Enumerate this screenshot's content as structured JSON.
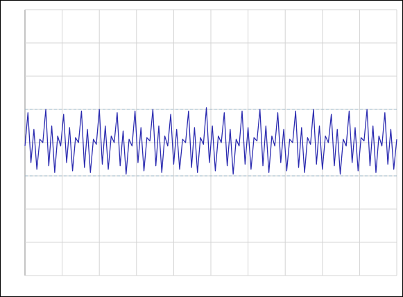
{
  "chart_data": {
    "type": "line",
    "xlim": [
      0,
      10
    ],
    "ylim": [
      -4,
      4
    ],
    "xticks": [
      0,
      1,
      2,
      3,
      4,
      5,
      6,
      7,
      8,
      9,
      10
    ],
    "yticks": [
      -4,
      -3,
      -2,
      -1,
      0,
      1,
      2,
      3,
      4
    ],
    "grid": true,
    "grid_color": "#d4d4d4",
    "cursor_levels": [
      -1,
      1
    ],
    "cursor_color": "#9ab4c4",
    "series": [
      {
        "color": "#2b2bb0",
        "x": [
          0,
          0.08,
          0.16,
          0.24,
          0.32,
          0.4,
          0.48,
          0.56,
          0.64,
          0.72,
          0.8,
          0.88,
          0.96,
          1.04,
          1.12,
          1.2,
          1.28,
          1.36,
          1.44,
          1.52,
          1.6,
          1.68,
          1.76,
          1.84,
          1.92,
          2,
          2.08,
          2.16,
          2.24,
          2.32,
          2.4,
          2.48,
          2.56,
          2.64,
          2.72,
          2.8,
          2.88,
          2.96,
          3.04,
          3.12,
          3.2,
          3.28,
          3.36,
          3.44,
          3.52,
          3.6,
          3.68,
          3.76,
          3.84,
          3.92,
          4,
          4.08,
          4.16,
          4.24,
          4.32,
          4.4,
          4.48,
          4.56,
          4.64,
          4.72,
          4.8,
          4.88,
          4.96,
          5.04,
          5.12,
          5.2,
          5.28,
          5.36,
          5.44,
          5.52,
          5.6,
          5.68,
          5.76,
          5.84,
          5.92,
          6,
          6.08,
          6.16,
          6.24,
          6.32,
          6.4,
          6.48,
          6.56,
          6.64,
          6.72,
          6.8,
          6.88,
          6.96,
          7.04,
          7.12,
          7.2,
          7.28,
          7.36,
          7.44,
          7.52,
          7.6,
          7.68,
          7.76,
          7.84,
          7.92,
          8,
          8.08,
          8.16,
          8.24,
          8.32,
          8.4,
          8.48,
          8.56,
          8.64,
          8.72,
          8.8,
          8.88,
          8.96,
          9.04,
          9.12,
          9.2,
          9.28,
          9.36,
          9.44,
          9.52,
          9.6,
          9.68,
          9.76,
          9.84,
          9.92,
          10
        ],
        "values": [
          -0.1,
          0.9,
          -0.6,
          0.4,
          -0.8,
          0.1,
          0.0,
          1.0,
          -0.7,
          0.5,
          -0.9,
          0.2,
          -0.1,
          0.85,
          -0.6,
          0.45,
          -0.85,
          0.15,
          0.0,
          0.95,
          -0.75,
          0.4,
          -0.9,
          0.1,
          -0.05,
          1.0,
          -0.65,
          0.5,
          -0.8,
          0.2,
          0.0,
          0.9,
          -0.7,
          0.35,
          -0.95,
          0.1,
          -0.1,
          0.95,
          -0.6,
          0.45,
          -0.85,
          0.15,
          0.05,
          1.0,
          -0.7,
          0.5,
          -0.9,
          0.2,
          -0.1,
          0.85,
          -0.65,
          0.4,
          -0.8,
          0.1,
          0.0,
          0.95,
          -0.75,
          0.45,
          -0.9,
          0.15,
          -0.05,
          1.05,
          -0.6,
          0.5,
          -0.85,
          0.2,
          0.0,
          0.9,
          -0.7,
          0.4,
          -0.95,
          0.1,
          -0.1,
          0.95,
          -0.65,
          0.45,
          -0.8,
          0.15,
          0.05,
          1.0,
          -0.7,
          0.5,
          -0.9,
          0.2,
          -0.1,
          0.9,
          -0.6,
          0.4,
          -0.85,
          0.1,
          0.0,
          0.95,
          -0.75,
          0.45,
          -0.9,
          0.15,
          -0.05,
          1.0,
          -0.65,
          0.5,
          -0.8,
          0.2,
          0.0,
          0.85,
          -0.7,
          0.4,
          -0.95,
          0.1,
          -0.1,
          0.95,
          -0.6,
          0.45,
          -0.85,
          0.15,
          0.05,
          1.0,
          -0.7,
          0.5,
          -0.9,
          0.2,
          -0.1,
          0.9,
          -0.65,
          0.4,
          -0.8,
          0.1
        ]
      }
    ]
  }
}
